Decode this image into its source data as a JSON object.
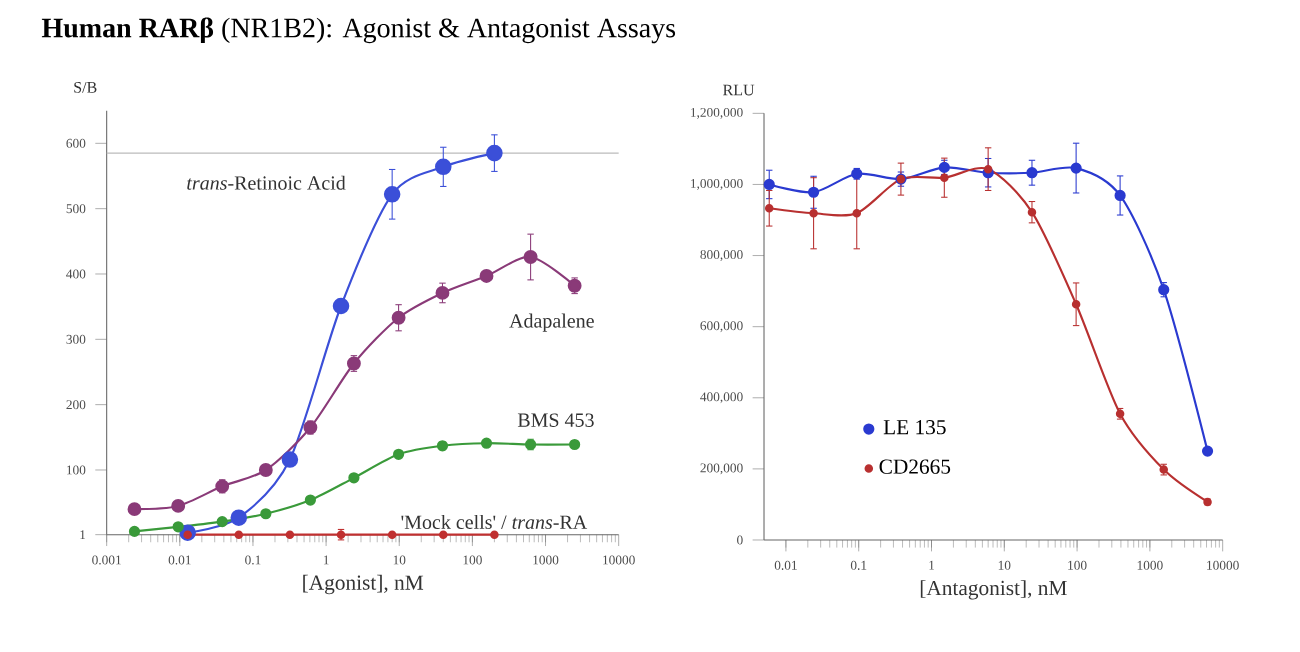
{
  "chart_data": [
    {
      "type": "line",
      "title": "**Human RARβ** (NR1B2): Agonist & Antagonist Assays",
      "ylabel": "S/B",
      "xlabel": "[Agonist], nM",
      "log": "x",
      "marker": "circle",
      "xlim": [
        0.001,
        10000
      ],
      "xticks": [
        0.001,
        0.01,
        0.1,
        1,
        10,
        100,
        1000,
        10000
      ],
      "ylim": [
        1,
        650
      ],
      "yticks": [
        1,
        100,
        200,
        300,
        400,
        500,
        600
      ],
      "ref_lines": [
        {
          "axis": "y",
          "value": 585,
          "color": "#bbbbbb"
        }
      ],
      "series": [
        {
          "name": "*trans*-Retinoic Acid",
          "color": "#3b4fd8",
          "x": [
            0.0128,
            0.064,
            0.32,
            1.6,
            8,
            40,
            200
          ],
          "values": [
            4,
            27,
            116,
            351,
            522,
            564,
            585
          ],
          "errors": [
            3,
            5,
            10,
            10,
            38,
            30,
            28
          ]
        },
        {
          "name": "Adapalene",
          "color": "#8a3a78",
          "x": [
            0.0024,
            0.0095,
            0.038,
            0.15,
            0.61,
            2.4,
            9.8,
            39,
            156,
            625,
            2500
          ],
          "values": [
            40,
            45,
            75,
            100,
            165,
            263,
            333,
            371,
            397,
            426,
            382
          ],
          "errors": [
            3,
            3,
            10,
            8,
            10,
            12,
            20,
            15,
            8,
            35,
            12
          ]
        },
        {
          "name": "BMS 453",
          "color": "#3a9a3a",
          "x": [
            0.0024,
            0.0095,
            0.038,
            0.15,
            0.61,
            2.4,
            9.8,
            39,
            156,
            625,
            2500
          ],
          "values": [
            6,
            13,
            21,
            33,
            54,
            88,
            124,
            137,
            141,
            139,
            139
          ],
          "errors": [
            2,
            2,
            2,
            3,
            3,
            4,
            4,
            6,
            4,
            8,
            6
          ]
        },
        {
          "name": "'Mock cells' / *trans*-RA",
          "color": "#c03030",
          "x": [
            0.0128,
            0.064,
            0.32,
            1.6,
            8,
            40,
            200
          ],
          "values": [
            1,
            1,
            1,
            1,
            1,
            1,
            1
          ],
          "errors": [
            null,
            null,
            null,
            8,
            null,
            null,
            null
          ]
        }
      ]
    },
    {
      "type": "line",
      "ylabel": "RLU",
      "xlabel": "[Antagonist], nM",
      "log": "x",
      "marker": "circle",
      "legend": "bottom left",
      "xlim": [
        0.005,
        10000
      ],
      "xticks": [
        0.01,
        0.1,
        1,
        10,
        100,
        1000,
        10000
      ],
      "ylim": [
        0,
        1200000
      ],
      "yticks": [
        0,
        {
          "value": 200000,
          "label": "200,000"
        },
        {
          "value": 400000,
          "label": "400,000"
        },
        {
          "value": 600000,
          "label": "600,000"
        },
        {
          "value": 800000,
          "label": "800,000"
        },
        {
          "value": 1000000,
          "label": "1,000,000"
        },
        {
          "value": 1200000,
          "label": "1,200,000"
        }
      ],
      "series": [
        {
          "name": "LE 135",
          "color": "#2a3ad0",
          "x": [
            0.0059,
            0.024,
            0.094,
            0.38,
            1.5,
            6,
            24,
            97,
            390,
            1550,
            6200
          ],
          "values": [
            1000000,
            978000,
            1030000,
            1015000,
            1048000,
            1033000,
            1033000,
            1046000,
            969000,
            704000,
            250000
          ],
          "errors": [
            40000,
            45000,
            15000,
            20000,
            20000,
            40000,
            35000,
            70000,
            55000,
            20000,
            10000
          ]
        },
        {
          "name": "CD2665",
          "color": "#b83030",
          "x": [
            0.0059,
            0.024,
            0.094,
            0.38,
            1.5,
            6,
            24,
            97,
            390,
            1550,
            6200
          ],
          "values": [
            933000,
            919000,
            919000,
            1015000,
            1019000,
            1043000,
            922000,
            663000,
            355000,
            198000,
            107000
          ],
          "errors": [
            50000,
            100000,
            100000,
            45000,
            55000,
            60000,
            30000,
            60000,
            15000,
            15000,
            8000
          ]
        }
      ]
    }
  ]
}
